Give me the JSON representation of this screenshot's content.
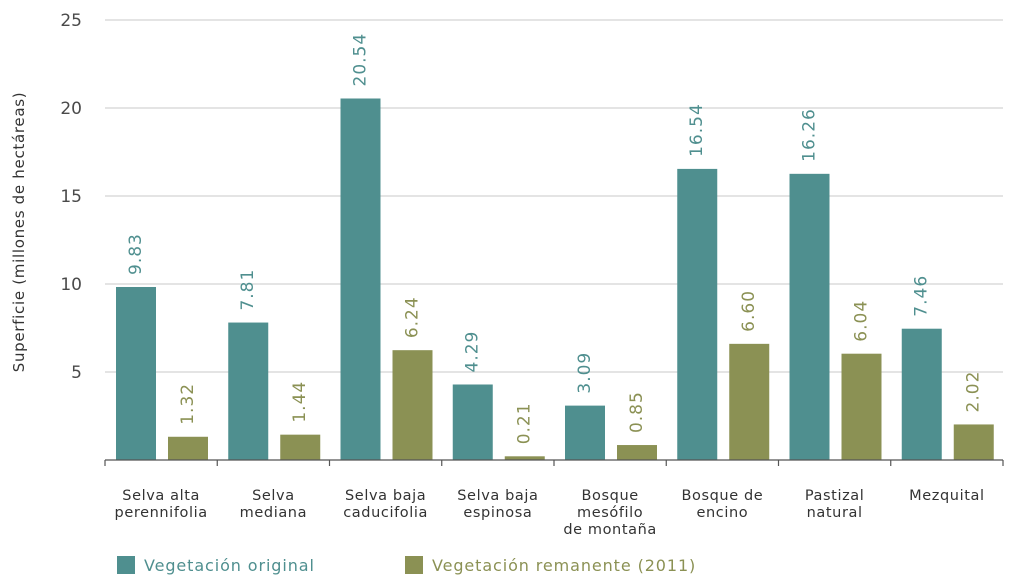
{
  "chart_data": {
    "type": "bar",
    "ylabel": "Superficie (millones de hectáreas)",
    "xlabel": "",
    "ylim": [
      0,
      25
    ],
    "yticks": [
      5,
      10,
      15,
      20,
      25
    ],
    "grid": true,
    "legend_position": "bottom-left",
    "categories": [
      [
        "Selva alta",
        "perennifolia"
      ],
      [
        "Selva",
        "mediana"
      ],
      [
        "Selva baja",
        "caducifolia"
      ],
      [
        "Selva baja",
        "espinosa"
      ],
      [
        "Bosque",
        "mesófilo",
        "de montaña"
      ],
      [
        "Bosque de",
        "encino"
      ],
      [
        "Pastizal",
        "natural"
      ],
      [
        "Mezquital"
      ]
    ],
    "series": [
      {
        "name": "Vegetación original",
        "color": "#4f8f8f",
        "label_color": "#4f8f8f",
        "values": [
          9.83,
          7.81,
          20.54,
          4.29,
          3.09,
          16.54,
          16.26,
          7.46
        ],
        "labels": [
          "9.83",
          "7.81",
          "20.54",
          "4.29",
          "3.09",
          "16.54",
          "16.26",
          "7.46"
        ]
      },
      {
        "name": "Vegetación remanente (2011)",
        "color": "#8b9154",
        "label_color": "#8b9154",
        "values": [
          1.32,
          1.44,
          6.24,
          0.21,
          0.85,
          6.6,
          6.04,
          2.02
        ],
        "labels": [
          "1.32",
          "1.44",
          "6.24",
          "0.21",
          "0.85",
          "6.60",
          "6.04",
          "2.02"
        ]
      }
    ]
  }
}
